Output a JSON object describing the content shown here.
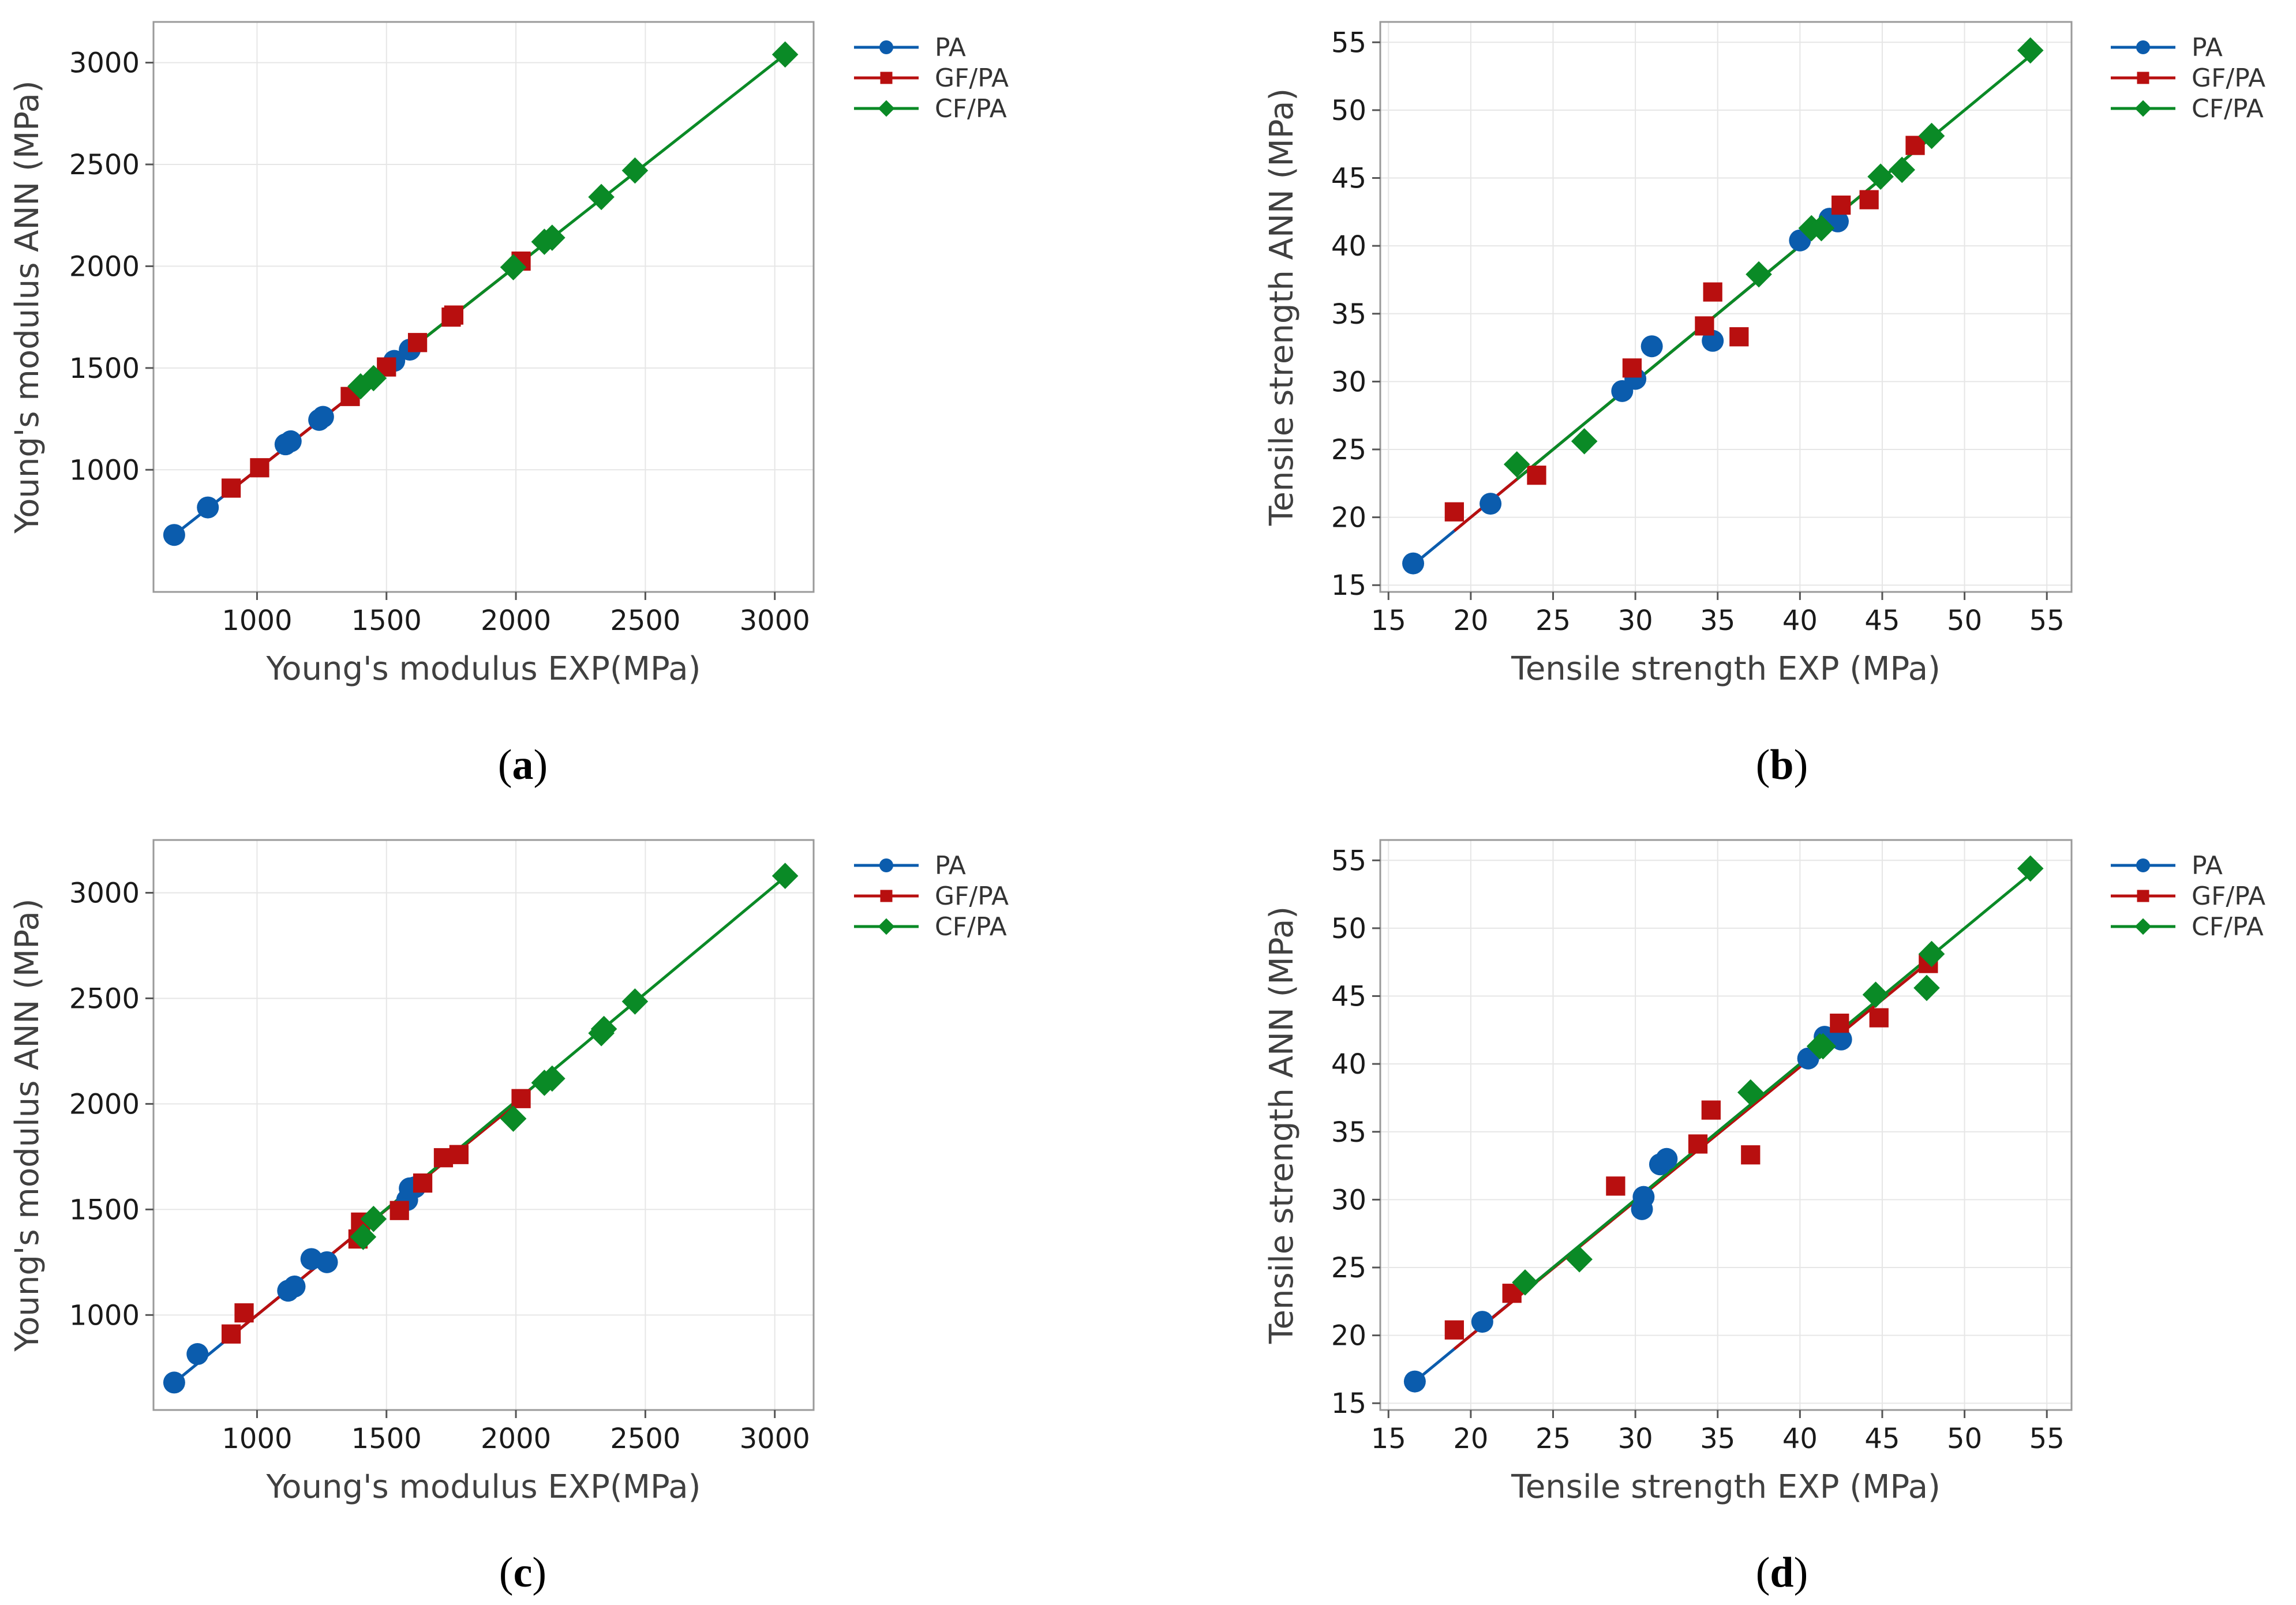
{
  "figure": {
    "colors": {
      "PA": "#0b5cad",
      "GF/PA": "#b80f0f",
      "CF/PA": "#0a8a26",
      "grid": "#e6e6e6",
      "frame": "#9a9a9a"
    }
  },
  "chart_data": [
    {
      "type": "scatter",
      "caption": "a",
      "xlabel": "Young's modulus EXP(MPa)",
      "ylabel": "Young's modulus ANN (MPa)",
      "xlim": [
        600,
        3150
      ],
      "ylim": [
        400,
        3200
      ],
      "xticks": [
        1000,
        1500,
        2000,
        2500,
        3000
      ],
      "yticks": [
        1000,
        1500,
        2000,
        2500,
        3000
      ],
      "grid": true,
      "legend_position": "outside-right",
      "series": [
        {
          "name": "PA",
          "marker": "circle",
          "line": [
            [
              680,
              680
            ],
            [
              1600,
              1600
            ]
          ],
          "points": [
            [
              680,
              680
            ],
            [
              810,
              815
            ],
            [
              1110,
              1125
            ],
            [
              1130,
              1140
            ],
            [
              1240,
              1245
            ],
            [
              1255,
              1260
            ],
            [
              1530,
              1535
            ],
            [
              1590,
              1590
            ]
          ]
        },
        {
          "name": "GF/PA",
          "marker": "square",
          "line": [
            [
              900,
              900
            ],
            [
              2030,
              2030
            ]
          ],
          "points": [
            [
              900,
              910
            ],
            [
              1010,
              1010
            ],
            [
              1360,
              1360
            ],
            [
              1500,
              1505
            ],
            [
              1620,
              1625
            ],
            [
              1750,
              1750
            ],
            [
              1760,
              1760
            ],
            [
              2020,
              2025
            ]
          ]
        },
        {
          "name": "CF/PA",
          "marker": "diamond",
          "line": [
            [
              1400,
              1400
            ],
            [
              3040,
              3040
            ]
          ],
          "points": [
            [
              1400,
              1410
            ],
            [
              1450,
              1450
            ],
            [
              1990,
              1995
            ],
            [
              2110,
              2120
            ],
            [
              2140,
              2140
            ],
            [
              2330,
              2340
            ],
            [
              2460,
              2470
            ],
            [
              3040,
              3040
            ]
          ]
        }
      ]
    },
    {
      "type": "scatter",
      "caption": "b",
      "xlabel": "Tensile strength EXP (MPa)",
      "ylabel": "Tensile strength ANN (MPa)",
      "xlim": [
        14.5,
        56.5
      ],
      "ylim": [
        14.5,
        56.5
      ],
      "xticks": [
        15,
        20,
        25,
        30,
        35,
        40,
        45,
        50,
        55
      ],
      "yticks": [
        15,
        20,
        25,
        30,
        35,
        40,
        45,
        50,
        55
      ],
      "grid": true,
      "legend_position": "outside-right",
      "series": [
        {
          "name": "PA",
          "marker": "circle",
          "line": [
            [
              16.5,
              16.5
            ],
            [
              42.5,
              42.5
            ]
          ],
          "points": [
            [
              16.5,
              16.6
            ],
            [
              21.2,
              21.0
            ],
            [
              29.2,
              29.3
            ],
            [
              30.0,
              30.2
            ],
            [
              31.0,
              32.6
            ],
            [
              34.7,
              33.0
            ],
            [
              40.0,
              40.4
            ],
            [
              41.8,
              42.0
            ],
            [
              42.3,
              41.8
            ]
          ]
        },
        {
          "name": "GF/PA",
          "marker": "square",
          "line": [
            [
              19.0,
              19.0
            ],
            [
              47.0,
              47.0
            ]
          ],
          "points": [
            [
              19.0,
              20.4
            ],
            [
              24.0,
              23.1
            ],
            [
              29.8,
              31.0
            ],
            [
              34.2,
              34.1
            ],
            [
              34.7,
              36.6
            ],
            [
              36.3,
              33.3
            ],
            [
              42.5,
              43.0
            ],
            [
              44.2,
              43.4
            ],
            [
              47.0,
              47.4
            ]
          ]
        },
        {
          "name": "CF/PA",
          "marker": "diamond",
          "line": [
            [
              22.8,
              22.8
            ],
            [
              54.0,
              54.0
            ]
          ],
          "points": [
            [
              22.8,
              23.9
            ],
            [
              26.9,
              25.6
            ],
            [
              37.5,
              37.9
            ],
            [
              40.7,
              41.3
            ],
            [
              41.3,
              41.3
            ],
            [
              44.9,
              45.1
            ],
            [
              46.2,
              45.6
            ],
            [
              48.0,
              48.1
            ],
            [
              54.0,
              54.4
            ]
          ]
        }
      ]
    },
    {
      "type": "scatter",
      "caption": "c",
      "xlabel": "Young's modulus EXP(MPa)",
      "ylabel": "Young's modulus ANN (MPa)",
      "xlim": [
        600,
        3150
      ],
      "ylim": [
        550,
        3250
      ],
      "xticks": [
        1000,
        1500,
        2000,
        2500,
        3000
      ],
      "yticks": [
        1000,
        1500,
        2000,
        2500,
        3000
      ],
      "grid": true,
      "legend_position": "outside-right",
      "series": [
        {
          "name": "PA",
          "marker": "circle",
          "line": [
            [
              680,
              680
            ],
            [
              1610,
              1610
            ]
          ],
          "points": [
            [
              680,
              680
            ],
            [
              770,
              815
            ],
            [
              1120,
              1115
            ],
            [
              1145,
              1135
            ],
            [
              1210,
              1265
            ],
            [
              1270,
              1250
            ],
            [
              1580,
              1545
            ],
            [
              1590,
              1600
            ],
            [
              1610,
              1605
            ]
          ]
        },
        {
          "name": "GF/PA",
          "marker": "square",
          "line": [
            [
              900,
              900
            ],
            [
              2030,
              2030
            ]
          ],
          "points": [
            [
              900,
              910
            ],
            [
              950,
              1010
            ],
            [
              1390,
              1360
            ],
            [
              1400,
              1440
            ],
            [
              1550,
              1495
            ],
            [
              1640,
              1625
            ],
            [
              1720,
              1745
            ],
            [
              1780,
              1760
            ],
            [
              2020,
              2025
            ]
          ]
        },
        {
          "name": "CF/PA",
          "marker": "diamond",
          "line": [
            [
              1400,
              1400
            ],
            [
              3040,
              3075
            ]
          ],
          "points": [
            [
              1410,
              1370
            ],
            [
              1450,
              1455
            ],
            [
              1990,
              1930
            ],
            [
              2110,
              2100
            ],
            [
              2140,
              2120
            ],
            [
              2330,
              2335
            ],
            [
              2340,
              2355
            ],
            [
              2460,
              2485
            ],
            [
              3040,
              3080
            ]
          ]
        }
      ]
    },
    {
      "type": "scatter",
      "caption": "d",
      "xlabel": "Tensile strength EXP (MPa)",
      "ylabel": "Tensile strength ANN (MPa)",
      "xlim": [
        14.5,
        56.5
      ],
      "ylim": [
        14.5,
        56.5
      ],
      "xticks": [
        15,
        20,
        25,
        30,
        35,
        40,
        45,
        50,
        55
      ],
      "yticks": [
        15,
        20,
        25,
        30,
        35,
        40,
        45,
        50,
        55
      ],
      "grid": true,
      "legend_position": "outside-right",
      "series": [
        {
          "name": "PA",
          "marker": "circle",
          "line": [
            [
              16.5,
              16.5
            ],
            [
              42.5,
              42.5
            ]
          ],
          "points": [
            [
              16.6,
              16.6
            ],
            [
              20.7,
              21.0
            ],
            [
              30.4,
              29.3
            ],
            [
              30.5,
              30.2
            ],
            [
              31.5,
              32.6
            ],
            [
              31.9,
              33.0
            ],
            [
              40.5,
              40.4
            ],
            [
              41.5,
              42.0
            ],
            [
              42.5,
              41.8
            ]
          ]
        },
        {
          "name": "GF/PA",
          "marker": "square",
          "line": [
            [
              19.0,
              19.0
            ],
            [
              47.8,
              47.5
            ]
          ],
          "points": [
            [
              19.0,
              20.4
            ],
            [
              22.5,
              23.1
            ],
            [
              28.8,
              31.0
            ],
            [
              33.8,
              34.1
            ],
            [
              34.6,
              36.6
            ],
            [
              37.0,
              33.3
            ],
            [
              42.4,
              43.0
            ],
            [
              44.8,
              43.4
            ],
            [
              47.8,
              47.4
            ]
          ]
        },
        {
          "name": "CF/PA",
          "marker": "diamond",
          "line": [
            [
              23.3,
              23.3
            ],
            [
              54.0,
              54.0
            ]
          ],
          "points": [
            [
              23.3,
              23.9
            ],
            [
              26.6,
              25.6
            ],
            [
              37.0,
              37.9
            ],
            [
              41.2,
              41.3
            ],
            [
              41.4,
              41.3
            ],
            [
              44.6,
              45.1
            ],
            [
              47.7,
              45.6
            ],
            [
              48.0,
              48.1
            ],
            [
              54.0,
              54.4
            ]
          ]
        }
      ]
    }
  ]
}
